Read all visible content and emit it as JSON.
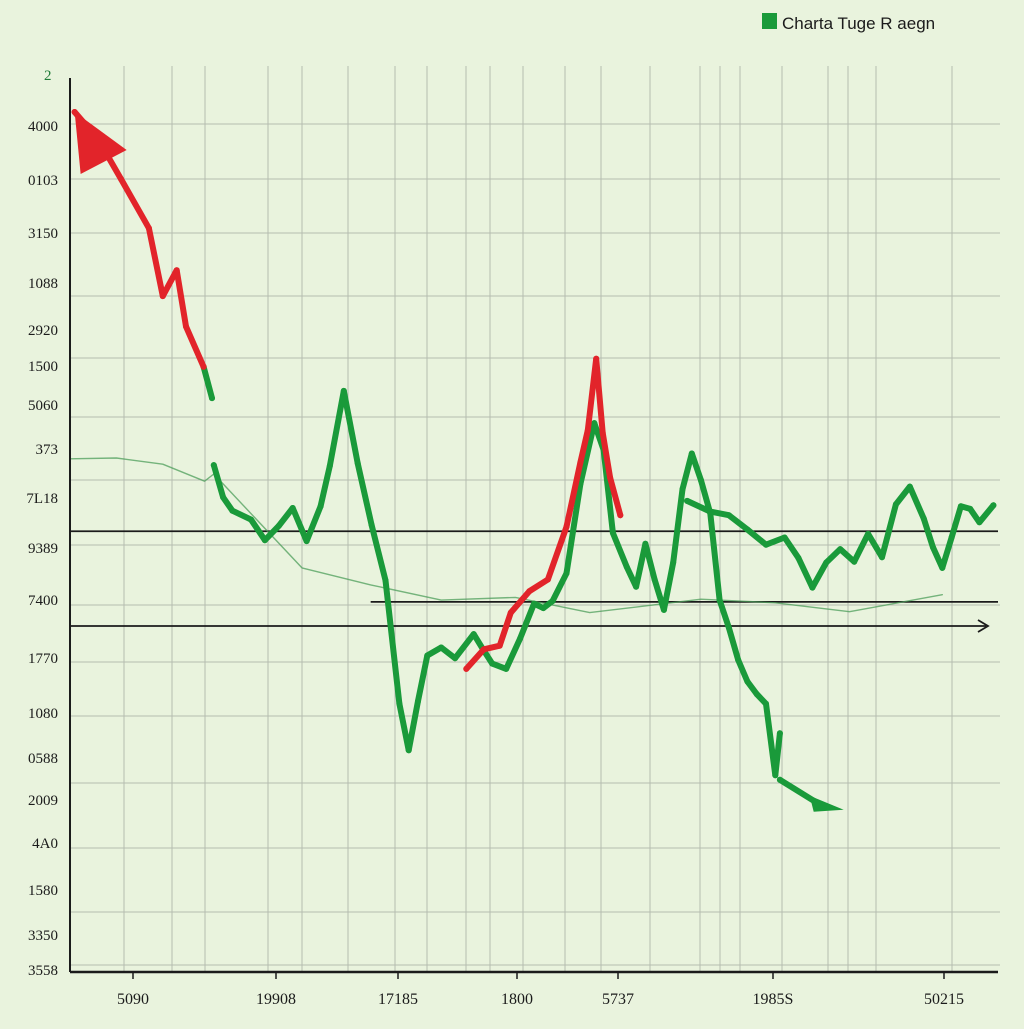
{
  "chart_data": {
    "type": "line",
    "title": "",
    "xlabel": "",
    "ylabel": "",
    "y_corner_label": "2",
    "x_ticks": [
      "5090",
      "19908",
      "17185",
      "1800",
      "5737",
      "1985S",
      "50215"
    ],
    "y_ticks": [
      "4000",
      "0103",
      "3150",
      "1088",
      "2920",
      "1500",
      "5060",
      "373",
      "7L18",
      "9389",
      "7400",
      "1770",
      "1080",
      "0588",
      "2009",
      "4A0",
      "1580",
      "3350",
      "3558"
    ],
    "legend": {
      "label": "Charta Tuge R aegn",
      "color": "#1a9a3a",
      "position": "top-right"
    },
    "grid": true,
    "xlim": [
      0,
      100
    ],
    "ylim": [
      0,
      100
    ],
    "reference_lines": [
      {
        "y": 49.3,
        "x_from": 0,
        "x_to": 100,
        "arrow": false
      },
      {
        "y": 41.4,
        "x_from": 32.4,
        "x_to": 100,
        "arrow": false
      },
      {
        "y": 38.7,
        "x_from": 0,
        "x_to": 100,
        "arrow": true
      }
    ],
    "series": [
      {
        "role": "faint-baseline",
        "color": "#4c9e5a",
        "values": [
          [
            0,
            57.4
          ],
          [
            5,
            57.5
          ],
          [
            10,
            56.8
          ],
          [
            14.5,
            54.9
          ],
          [
            15.5,
            55.7
          ],
          [
            25,
            45.2
          ],
          [
            32.4,
            43.3
          ],
          [
            40,
            41.6
          ],
          [
            48,
            41.9
          ],
          [
            56,
            40.2
          ],
          [
            68,
            41.7
          ],
          [
            76,
            41.3
          ],
          [
            84,
            40.3
          ],
          [
            94,
            42.2
          ]
        ]
      },
      {
        "role": "main",
        "color": "#1a9a3a",
        "values": [
          [
            15.5,
            56.7
          ],
          [
            16.5,
            53.1
          ],
          [
            17.5,
            51.6
          ],
          [
            19.5,
            50.6
          ],
          [
            21,
            48.3
          ],
          [
            22.5,
            49.9
          ],
          [
            24,
            51.9
          ],
          [
            25.5,
            48.2
          ],
          [
            27,
            52.1
          ],
          [
            28,
            56.6
          ],
          [
            29.5,
            65
          ],
          [
            31,
            56.9
          ],
          [
            32.5,
            50
          ],
          [
            34,
            43.8
          ],
          [
            35.5,
            30
          ],
          [
            36.5,
            24.8
          ],
          [
            37.5,
            30.3
          ],
          [
            38.5,
            35.4
          ],
          [
            40,
            36.3
          ],
          [
            41.5,
            35.1
          ],
          [
            43.5,
            37.8
          ],
          [
            44.5,
            36.1
          ],
          [
            45.5,
            34.5
          ],
          [
            47,
            33.9
          ],
          [
            48.5,
            37.3
          ],
          [
            50,
            41.2
          ],
          [
            51,
            40.7
          ],
          [
            52,
            41.5
          ],
          [
            53.5,
            44.6
          ],
          [
            55,
            54.6
          ],
          [
            56.5,
            61.4
          ],
          [
            57.5,
            58.4
          ],
          [
            58.5,
            49.1
          ],
          [
            60,
            45.3
          ],
          [
            61,
            43.1
          ],
          [
            62,
            47.9
          ],
          [
            63,
            43.9
          ],
          [
            64,
            40.5
          ],
          [
            65,
            45.8
          ],
          [
            66,
            54
          ],
          [
            67,
            58
          ],
          [
            68,
            55
          ],
          [
            69,
            51.3
          ],
          [
            70,
            41.6
          ],
          [
            71,
            38.5
          ],
          [
            72,
            34.9
          ],
          [
            73,
            32.5
          ],
          [
            74,
            31.1
          ],
          [
            75,
            30
          ],
          [
            76,
            22
          ],
          [
            76.5,
            26.7
          ]
        ]
      },
      {
        "role": "right-segment",
        "color": "#1a9a3a",
        "values": [
          [
            66.5,
            52.7
          ],
          [
            69,
            51.5
          ],
          [
            71,
            51.1
          ],
          [
            73,
            49.5
          ],
          [
            75,
            47.8
          ],
          [
            77,
            48.6
          ],
          [
            78.5,
            46.3
          ],
          [
            80,
            43
          ],
          [
            81.5,
            45.8
          ],
          [
            83,
            47.3
          ],
          [
            84.5,
            45.9
          ],
          [
            86,
            49
          ],
          [
            87.5,
            46.4
          ],
          [
            89,
            52.3
          ],
          [
            90.5,
            54.3
          ],
          [
            92,
            50.7
          ],
          [
            93,
            47.5
          ],
          [
            94,
            45.2
          ],
          [
            95,
            48.6
          ],
          [
            96,
            52.1
          ],
          [
            97,
            51.8
          ],
          [
            98,
            50.3
          ],
          [
            99.5,
            52.2
          ]
        ]
      },
      {
        "role": "upper-tail",
        "color": "#1a9a3a",
        "values": [
          [
            14.4,
            67.7
          ],
          [
            15.3,
            64.2
          ]
        ]
      },
      {
        "role": "lower-arrow",
        "color": "#1a9a3a",
        "values": [
          [
            76.5,
            21.5
          ],
          [
            81,
            18.6
          ]
        ]
      },
      {
        "role": "decline",
        "color": "#e2242a",
        "values": [
          [
            0.5,
            96.2
          ],
          [
            3,
            93.2
          ],
          [
            5.5,
            88.7
          ],
          [
            8.5,
            83.2
          ],
          [
            10,
            75.6
          ],
          [
            11.5,
            78.5
          ],
          [
            12.5,
            72.2
          ],
          [
            14.4,
            67.7
          ]
        ]
      },
      {
        "role": "spike",
        "color": "#e2242a",
        "values": [
          [
            42.7,
            33.9
          ],
          [
            44.6,
            36.1
          ],
          [
            46.3,
            36.5
          ],
          [
            47.5,
            40.2
          ],
          [
            49.5,
            42.6
          ],
          [
            51.5,
            43.9
          ],
          [
            53.5,
            49.8
          ],
          [
            55,
            57
          ],
          [
            55.8,
            60.6
          ],
          [
            56.7,
            68.6
          ],
          [
            57.4,
            60.3
          ],
          [
            58.2,
            55.3
          ],
          [
            59.3,
            51.1
          ]
        ]
      }
    ]
  }
}
